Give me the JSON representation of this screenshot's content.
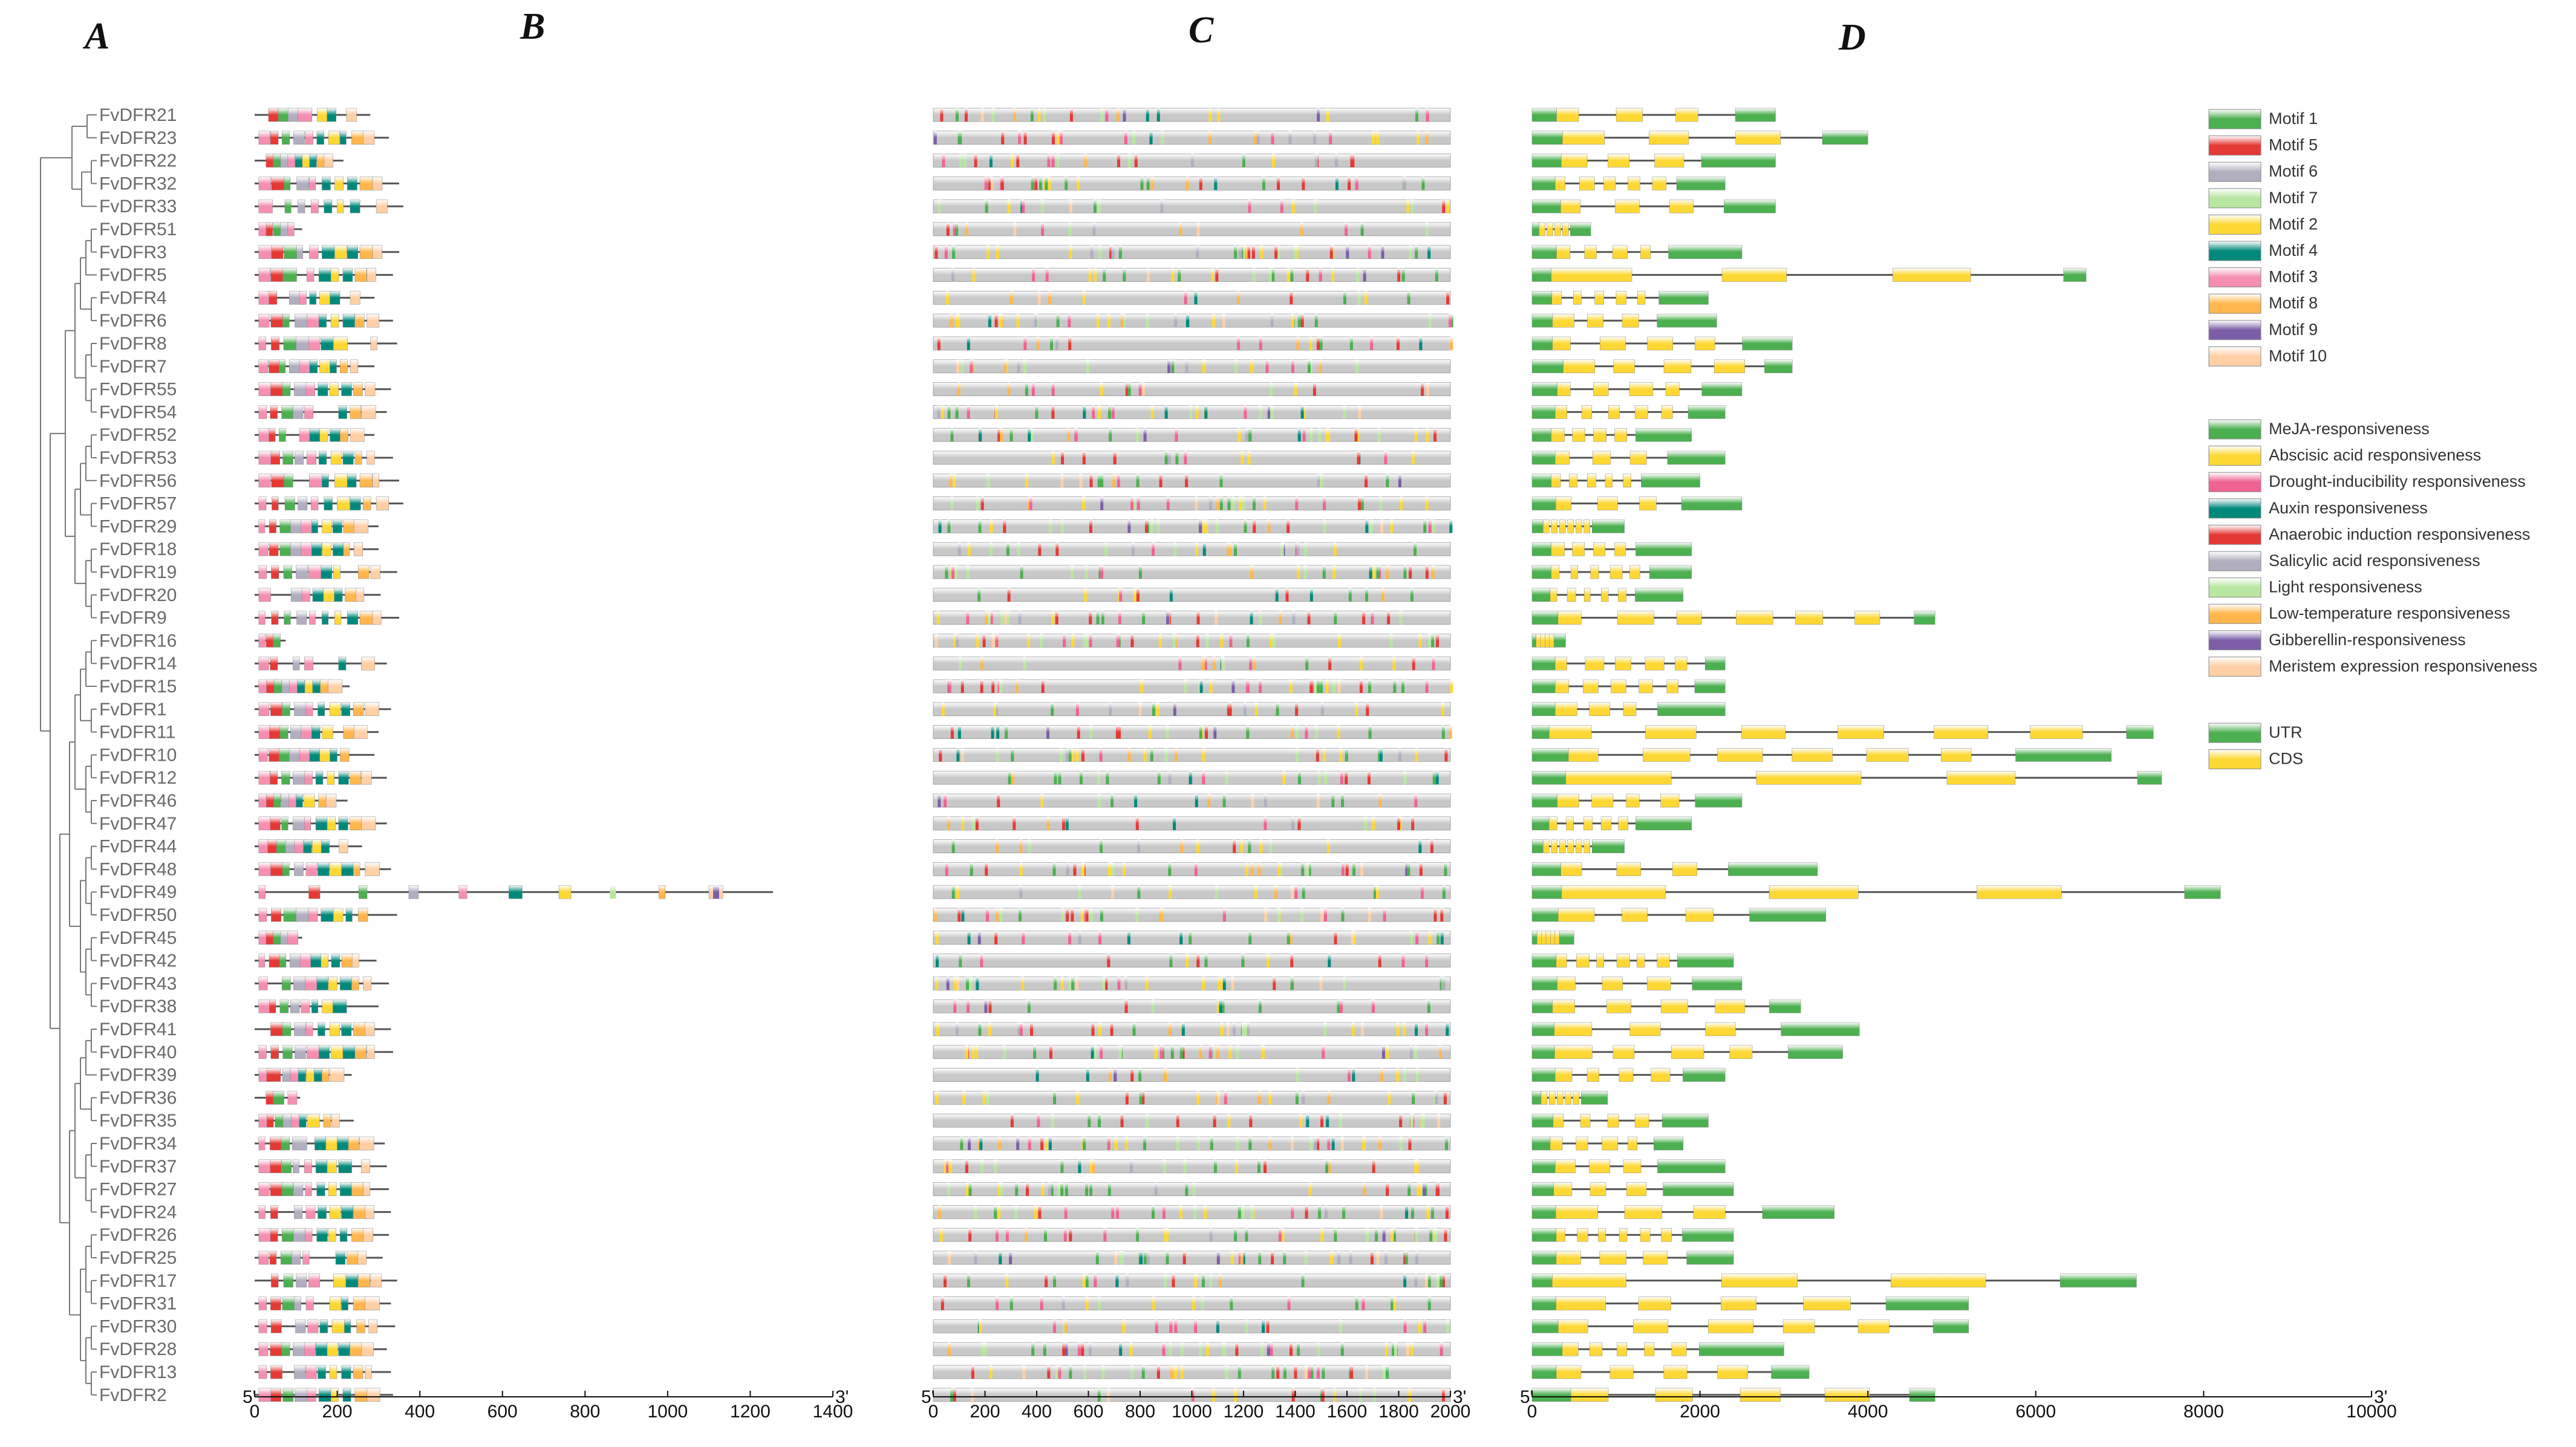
{
  "panels": {
    "a": "A",
    "b": "B",
    "c": "C",
    "d": "D"
  },
  "genes": [
    "FvDFR21",
    "FvDFR23",
    "FvDFR22",
    "FvDFR32",
    "FvDFR33",
    "FvDFR51",
    "FvDFR3",
    "FvDFR5",
    "FvDFR4",
    "FvDFR6",
    "FvDFR8",
    "FvDFR7",
    "FvDFR55",
    "FvDFR54",
    "FvDFR52",
    "FvDFR53",
    "FvDFR56",
    "FvDFR57",
    "FvDFR29",
    "FvDFR18",
    "FvDFR19",
    "FvDFR20",
    "FvDFR9",
    "FvDFR16",
    "FvDFR14",
    "FvDFR15",
    "FvDFR1",
    "FvDFR11",
    "FvDFR10",
    "FvDFR12",
    "FvDFR46",
    "FvDFR47",
    "FvDFR44",
    "FvDFR48",
    "FvDFR49",
    "FvDFR50",
    "FvDFR45",
    "FvDFR42",
    "FvDFR43",
    "FvDFR38",
    "FvDFR41",
    "FvDFR40",
    "FvDFR39",
    "FvDFR36",
    "FvDFR35",
    "FvDFR34",
    "FvDFR37",
    "FvDFR27",
    "FvDFR24",
    "FvDFR26",
    "FvDFR25",
    "FvDFR17",
    "FvDFR31",
    "FvDFR30",
    "FvDFR28",
    "FvDFR13",
    "FvDFR2"
  ],
  "protein_lengths": [
    280,
    325,
    215,
    350,
    360,
    115,
    350,
    335,
    290,
    335,
    345,
    290,
    330,
    320,
    290,
    335,
    350,
    360,
    300,
    300,
    345,
    305,
    350,
    75,
    320,
    230,
    330,
    300,
    290,
    320,
    225,
    320,
    260,
    330,
    1255,
    345,
    115,
    295,
    325,
    300,
    330,
    335,
    235,
    110,
    240,
    315,
    320,
    325,
    330,
    325,
    310,
    345,
    330,
    340,
    320,
    330,
    335
  ],
  "gene_lengths": [
    2900,
    4000,
    2900,
    2300,
    2900,
    700,
    2500,
    6600,
    2100,
    2200,
    3100,
    3100,
    2500,
    2300,
    1900,
    2300,
    2000,
    2500,
    1100,
    1900,
    1900,
    1800,
    4800,
    400,
    2300,
    2300,
    2300,
    7400,
    6900,
    7500,
    2500,
    1900,
    1100,
    3400,
    8200,
    3500,
    500,
    2400,
    2500,
    3200,
    3900,
    3700,
    2300,
    900,
    2100,
    1800,
    2300,
    2400,
    3600,
    2400,
    2400,
    7200,
    5200,
    5200,
    3000,
    3300,
    4800
  ],
  "motif_legend": [
    {
      "name": "Motif 1",
      "color": "#4caf50"
    },
    {
      "name": "Motif 5",
      "color": "#e53935"
    },
    {
      "name": "Motif 6",
      "color": "#b0aebf"
    },
    {
      "name": "Motif 7",
      "color": "#b8e6a0"
    },
    {
      "name": "Motif 2",
      "color": "#fdd835"
    },
    {
      "name": "Motif 4",
      "color": "#00897b"
    },
    {
      "name": "Motif 3",
      "color": "#f48fb1"
    },
    {
      "name": "Motif 8",
      "color": "#ffb74d"
    },
    {
      "name": "Motif 9",
      "color": "#7b5ea7"
    },
    {
      "name": "Motif 10",
      "color": "#ffcfa6"
    }
  ],
  "element_legend": [
    {
      "name": "MeJA-responsiveness",
      "color": "#4caf50"
    },
    {
      "name": "Abscisic acid responsiveness",
      "color": "#fdd835"
    },
    {
      "name": "Drought-inducibility responsiveness",
      "color": "#f06292"
    },
    {
      "name": "Auxin responsiveness",
      "color": "#00897b"
    },
    {
      "name": "Anaerobic induction responsiveness",
      "color": "#e53935"
    },
    {
      "name": "Salicylic acid responsiveness",
      "color": "#b0aebf"
    },
    {
      "name": "Light responsiveness",
      "color": "#b8e6a0"
    },
    {
      "name": "Low-temperature responsiveness",
      "color": "#ffb74d"
    },
    {
      "name": "Gibberellin-responsiveness",
      "color": "#7b5ea7"
    },
    {
      "name": "Meristem expression responsiveness",
      "color": "#ffcfa6"
    }
  ],
  "structure_legend": [
    {
      "name": "UTR",
      "color": "#4caf50"
    },
    {
      "name": "CDS",
      "color": "#fdd835"
    }
  ],
  "axes": {
    "b": {
      "ticks": [
        "0",
        "200",
        "400",
        "600",
        "800",
        "1000",
        "1200",
        "1400"
      ],
      "values": [
        0,
        200,
        400,
        600,
        800,
        1000,
        1200,
        1400
      ],
      "max": 1400,
      "left_end": "5'",
      "right_end": "3'"
    },
    "c": {
      "ticks": [
        "0",
        "200",
        "400",
        "600",
        "800",
        "1000",
        "1200",
        "1400",
        "1600",
        "1800",
        "2000"
      ],
      "values": [
        0,
        200,
        400,
        600,
        800,
        1000,
        1200,
        1400,
        1600,
        1800,
        2000
      ],
      "max": 2000,
      "left_end": "5'",
      "right_end": "3'"
    },
    "d": {
      "ticks": [
        "0",
        "2000",
        "4000",
        "6000",
        "8000",
        "10000"
      ],
      "values": [
        0,
        2000,
        4000,
        6000,
        8000,
        10000
      ],
      "max": 10000,
      "left_end": "5'",
      "right_end": "3'"
    }
  },
  "colors": {
    "tree": "#777777",
    "backbone": "#555555",
    "promoter": "#d9d9d9",
    "intron": "#555555"
  }
}
